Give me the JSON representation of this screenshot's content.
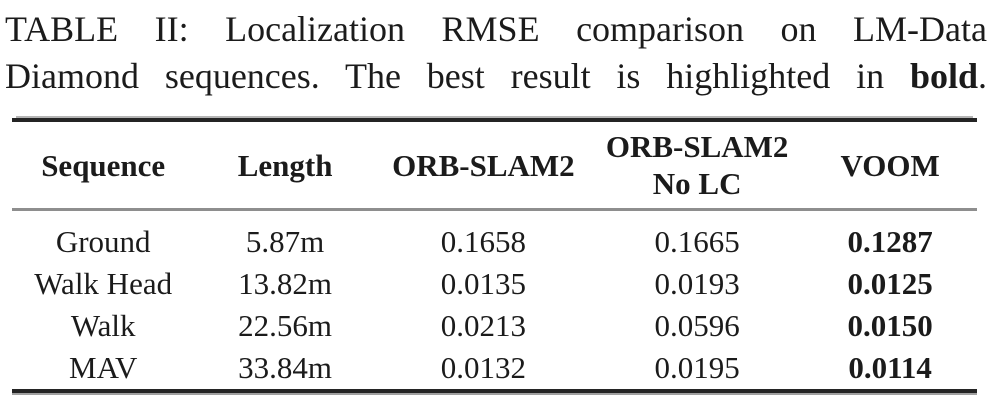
{
  "caption": {
    "line1": "TABLE II: Localization RMSE comparison on LM-Data",
    "line2_text": "Diamond sequences. The best result is highlighted in ",
    "line2_bold_word": "bold",
    "line2_end": "."
  },
  "table": {
    "headers": [
      {
        "line1": "Sequence",
        "line2": ""
      },
      {
        "line1": "Length",
        "line2": ""
      },
      {
        "line1": "ORB-SLAM2",
        "line2": ""
      },
      {
        "line1": "ORB-SLAM2",
        "line2": "No LC"
      },
      {
        "line1": "VOOM",
        "line2": ""
      }
    ],
    "rows": [
      [
        "Ground",
        "5.87m",
        "0.1658",
        "0.1665",
        "0.1287"
      ],
      [
        "Walk Head",
        "13.82m",
        "0.0135",
        "0.0193",
        "0.0125"
      ],
      [
        "Walk",
        "22.56m",
        "0.0213",
        "0.0596",
        "0.0150"
      ],
      [
        "MAV",
        "33.84m",
        "0.0132",
        "0.0195",
        "0.0114"
      ]
    ],
    "bold_column": "VOOM",
    "bold_values": [
      "0.1287",
      "0.0125",
      "0.0150",
      "0.0114"
    ]
  },
  "colors": {
    "text": "#1b1b1b",
    "rule_heavy": "#242424",
    "rule_light": "#8e8e8e",
    "background": "#ffffff"
  }
}
